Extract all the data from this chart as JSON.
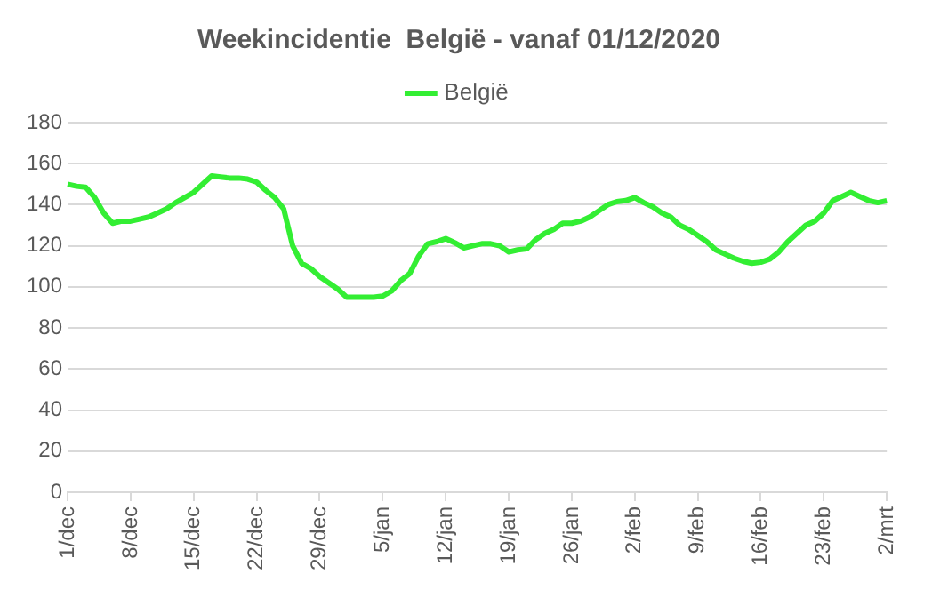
{
  "chart_data": {
    "type": "line",
    "title": "Weekincidentie  België - vanaf 01/12/2020",
    "categories": [
      "1/dec",
      null,
      null,
      null,
      null,
      null,
      null,
      "8/dec",
      null,
      null,
      null,
      null,
      null,
      null,
      "15/dec",
      null,
      null,
      null,
      null,
      null,
      null,
      "22/dec",
      null,
      null,
      null,
      null,
      null,
      null,
      "29/dec",
      null,
      null,
      null,
      null,
      null,
      null,
      "5/jan",
      null,
      null,
      null,
      null,
      null,
      null,
      "12/jan",
      null,
      null,
      null,
      null,
      null,
      null,
      "19/jan",
      null,
      null,
      null,
      null,
      null,
      null,
      "26/jan",
      null,
      null,
      null,
      null,
      null,
      null,
      "2/feb",
      null,
      null,
      null,
      null,
      null,
      null,
      "9/feb",
      null,
      null,
      null,
      null,
      null,
      null,
      "16/feb",
      null,
      null,
      null,
      null,
      null,
      null,
      "23/feb",
      null,
      null,
      null,
      null,
      null,
      null,
      "2/mrt"
    ],
    "series": [
      {
        "name": "België",
        "color": "#33ee33",
        "values": [
          150,
          149,
          148.5,
          143.5,
          136,
          131,
          132,
          132,
          133,
          134,
          136,
          138,
          141,
          143.5,
          146,
          150,
          154,
          153.5,
          153,
          153,
          152.5,
          151,
          147,
          143.5,
          138,
          120,
          111.5,
          109,
          105,
          102,
          99,
          95,
          95,
          95,
          95,
          95.5,
          98,
          103,
          106.5,
          115,
          121,
          122,
          123.5,
          121.5,
          119,
          120,
          121,
          121,
          120,
          117,
          118,
          118.5,
          123,
          126,
          128,
          131,
          131,
          132,
          134,
          137,
          140,
          141.5,
          142,
          143.5,
          141,
          139,
          136,
          134,
          130,
          128,
          125,
          122,
          118,
          116,
          114,
          112.5,
          111.5,
          112,
          113.5,
          117,
          122,
          126,
          130,
          132,
          136,
          142,
          144,
          146,
          144,
          142,
          141,
          142
        ]
      }
    ],
    "ylim": [
      0,
      180
    ],
    "yticks": [
      0,
      20,
      40,
      60,
      80,
      100,
      120,
      140,
      160,
      180
    ],
    "grid": "y",
    "legend": "top",
    "marker": "none",
    "line_style": "solid"
  }
}
